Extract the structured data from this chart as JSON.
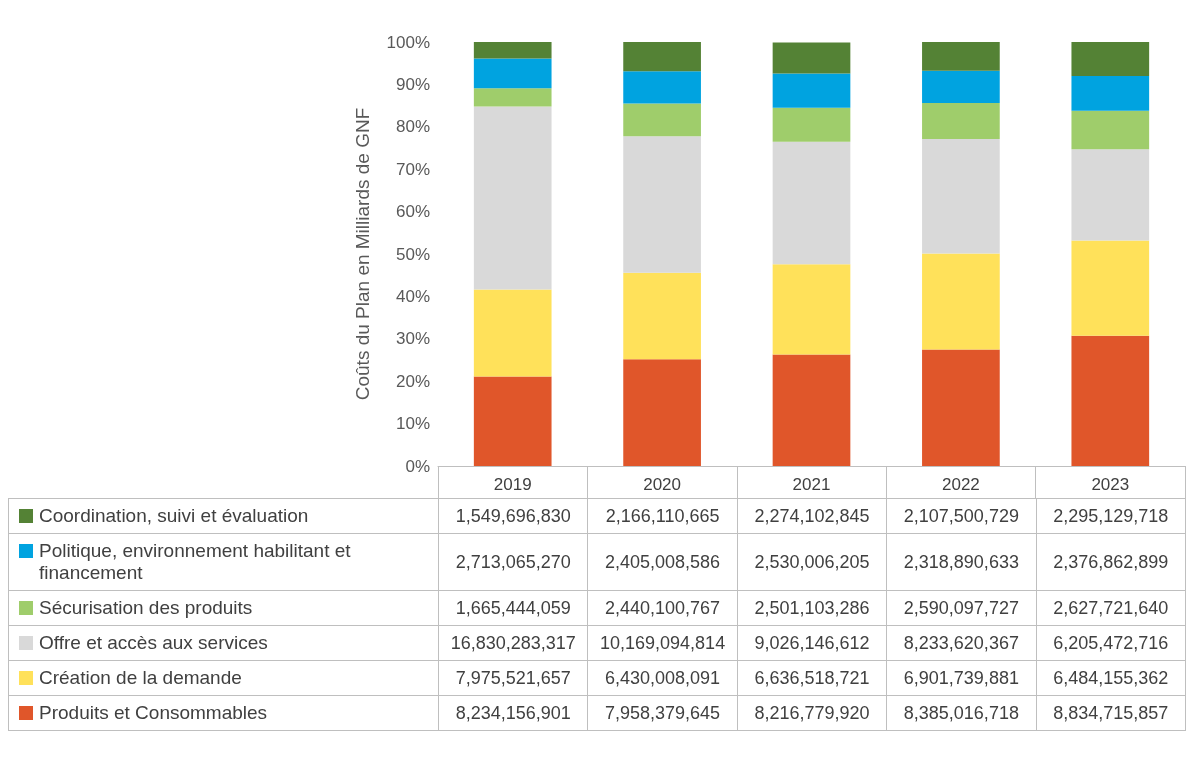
{
  "chart_data": {
    "type": "bar",
    "stacked": true,
    "ylabel": "Coûts du Plan en Milliards de GNF",
    "categories": [
      "2019",
      "2020",
      "2021",
      "2022",
      "2023"
    ],
    "ylim": [
      0,
      100
    ],
    "yticks": [
      {
        "value": 0,
        "label": "0%"
      },
      {
        "value": 10,
        "label": "10%"
      },
      {
        "value": 20,
        "label": "20%"
      },
      {
        "value": 30,
        "label": "30%"
      },
      {
        "value": 40,
        "label": "40%"
      },
      {
        "value": 50,
        "label": "50%"
      },
      {
        "value": 60,
        "label": "60%"
      },
      {
        "value": 70,
        "label": "70%"
      },
      {
        "value": 80,
        "label": "80%"
      },
      {
        "value": 90,
        "label": "90%"
      },
      {
        "value": 100,
        "label": "100%"
      }
    ],
    "grid": false,
    "legend": "bottom",
    "series": [
      {
        "name": "Produits et Consommables",
        "color": "#e0562a",
        "values": [
          21.1,
          25.2,
          26.3,
          27.5,
          30.7
        ]
      },
      {
        "name": "Création de la demande",
        "color": "#ffe15a",
        "values": [
          20.5,
          20.4,
          21.3,
          22.6,
          22.5
        ]
      },
      {
        "name": "Offre et accès aux services",
        "color": "#d9d9d9",
        "values": [
          43.2,
          32.2,
          28.9,
          27.0,
          21.5
        ]
      },
      {
        "name": "Sécurisation des produits",
        "color": "#9fcd6b",
        "values": [
          4.3,
          7.7,
          8.0,
          8.5,
          9.1
        ]
      },
      {
        "name": "Politique, environnement habilitant et financement",
        "color": "#00a3e0",
        "values": [
          7.0,
          7.6,
          8.1,
          7.6,
          8.2
        ]
      },
      {
        "name": "Coordination, suivi et évaluation",
        "color": "#548235",
        "values": [
          4.0,
          6.9,
          7.3,
          6.9,
          8.0
        ]
      }
    ],
    "annotations": [
      "8,234,156,901",
      "7,958,379,645",
      "8,216,779,920",
      "8,385,016,718",
      "8,834,715,857",
      "7,975,521,657",
      "6,430,008,091",
      "6,636,518,721",
      "6,901,739,881",
      "6,484,155,362",
      "16,830,283,317",
      "10,169,094,814",
      "9,026,146,612",
      "8,233,620,367",
      "6,205,472,716",
      "1,665,444,059",
      "2,440,100,767",
      "2,501,103,286",
      "2,590,097,727",
      "2,627,721,640",
      "2,713,065,270",
      "2,405,008,586",
      "2,530,006,205",
      "2,318,890,633",
      "2,376,862,899",
      "1,549,696,830",
      "2,166,110,665",
      "2,274,102,845",
      "2,107,500,729",
      "2,295,129,718"
    ]
  }
}
